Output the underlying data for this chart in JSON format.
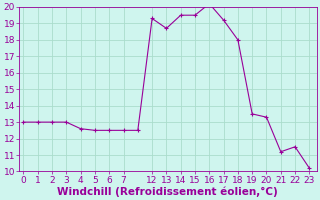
{
  "temps": [
    13.0,
    13.0,
    13.0,
    13.0,
    12.6,
    12.5,
    12.5,
    12.5,
    12.5,
    19.3,
    18.7,
    19.5,
    19.5,
    20.2,
    19.2,
    18.0,
    13.5,
    13.3,
    11.2,
    11.5,
    10.2
  ],
  "x_positions": [
    0,
    1,
    2,
    3,
    4,
    5,
    6,
    7,
    8,
    9,
    10,
    11,
    12,
    13,
    14,
    15,
    16,
    17,
    18,
    19,
    20
  ],
  "x_tick_positions": [
    0,
    1,
    2,
    3,
    4,
    5,
    6,
    7,
    9,
    10,
    11,
    12,
    13,
    14,
    15,
    16,
    17,
    18,
    19,
    20
  ],
  "x_tick_labels": [
    "0",
    "1",
    "2",
    "3",
    "4",
    "5",
    "6",
    "7",
    "12",
    "13",
    "14",
    "15",
    "16",
    "17",
    "18",
    "19",
    "20",
    "21",
    "22",
    "23"
  ],
  "line_color": "#990099",
  "marker": "+",
  "marker_size": 3,
  "marker_lw": 0.8,
  "line_width": 0.8,
  "background_color": "#cff5ee",
  "grid_color": "#aaddcc",
  "xlabel": "Windchill (Refroidissement éolien,°C)",
  "xlabel_color": "#990099",
  "xlabel_fontsize": 7.5,
  "tick_color": "#990099",
  "tick_fontsize": 6.5,
  "ylim": [
    10,
    20
  ],
  "yticks": [
    10,
    11,
    12,
    13,
    14,
    15,
    16,
    17,
    18,
    19,
    20
  ],
  "xlim": [
    -0.3,
    20.5
  ]
}
